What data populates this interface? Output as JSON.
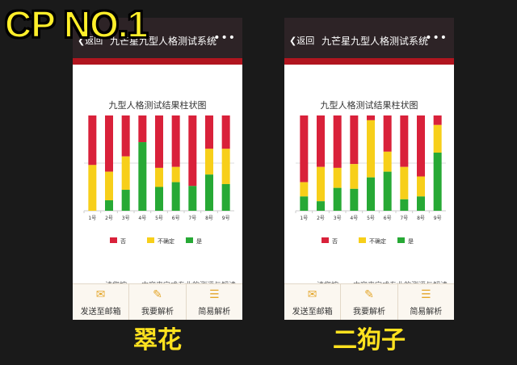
{
  "overlay_title": "CP NO.1",
  "colors": {
    "no": "#d9213a",
    "unsure": "#f7cf1a",
    "yes": "#27a935",
    "header": "#2d2326",
    "accent": "#b1151f"
  },
  "phones": [
    {
      "caption": "翠花",
      "header": {
        "back_label": "返回",
        "title": "九芒星九型人格测试系统",
        "more_icon": "more-dots-icon"
      },
      "chart_data": {
        "type": "bar",
        "stacked": true,
        "normalized": true,
        "title": "九型人格测试结果柱状图",
        "categories": [
          "1号",
          "2号",
          "3号",
          "4号",
          "5号",
          "6号",
          "7号",
          "8号",
          "9号"
        ],
        "series": [
          {
            "name": "否",
            "values": [
              52,
              59,
              43,
              28,
              55,
              54,
              74,
              35,
              35
            ]
          },
          {
            "name": "不确定",
            "values": [
              48,
              30,
              35,
              0,
              20,
              16,
              0,
              27,
              37
            ]
          },
          {
            "name": "是",
            "values": [
              0,
              11,
              22,
              72,
              25,
              30,
              26,
              38,
              28
            ]
          }
        ],
        "ylim": [
          0,
          100
        ],
        "grid": true,
        "legend": "bottom"
      },
      "description": "请您按……内容来完成专业的测评与解读",
      "tabs": [
        {
          "label": "发送至邮箱",
          "icon": "mail-icon"
        },
        {
          "label": "我要解析",
          "icon": "edit-icon"
        },
        {
          "label": "简易解析",
          "icon": "user-list-icon"
        }
      ]
    },
    {
      "caption": "二狗子",
      "header": {
        "back_label": "返回",
        "title": "九芒星九型人格测试系统",
        "more_icon": "more-dots-icon"
      },
      "chart_data": {
        "type": "bar",
        "stacked": true,
        "normalized": true,
        "title": "九型人格测试结果柱状图",
        "categories": [
          "1号",
          "2号",
          "3号",
          "4号",
          "5号",
          "6号",
          "7号",
          "8号",
          "9号"
        ],
        "series": [
          {
            "name": "否",
            "values": [
              70,
              54,
              55,
              51,
              5,
              38,
              54,
              64,
              10
            ]
          },
          {
            "name": "不确定",
            "values": [
              15,
              36,
              21,
              26,
              60,
              21,
              34,
              21,
              29
            ]
          },
          {
            "name": "是",
            "values": [
              15,
              10,
              24,
              23,
              35,
              41,
              12,
              15,
              61
            ]
          }
        ],
        "ylim": [
          0,
          100
        ],
        "grid": true,
        "legend": "bottom"
      },
      "description": "请您按……内容来完成专业的测评与解读",
      "tabs": [
        {
          "label": "发送至邮箱",
          "icon": "mail-icon"
        },
        {
          "label": "我要解析",
          "icon": "edit-icon"
        },
        {
          "label": "简易解析",
          "icon": "user-list-icon"
        }
      ]
    }
  ]
}
